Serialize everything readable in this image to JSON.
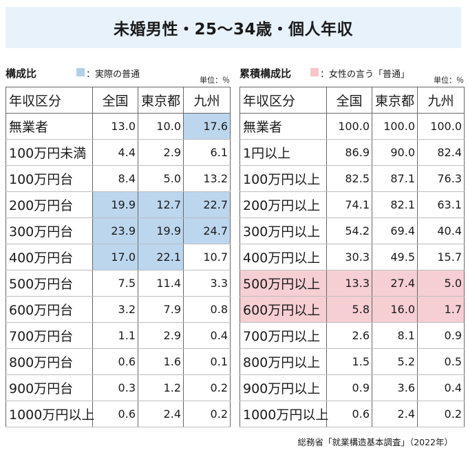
{
  "title": "未婚男性・25～34歳・個人年収",
  "left_panel": {
    "section_title": "構成比",
    "legend_label": "：実際の普通",
    "legend_color": "#b3cfe9",
    "unit": "単位：％",
    "headers": [
      "年収区分",
      "全国",
      "東京都",
      "九州"
    ]
  },
  "right_panel": {
    "section_title": "累積構成比",
    "legend_label": "：女性の言う「普通」",
    "legend_color": "#f6c6cb",
    "unit": "単位：％",
    "headers": [
      "年収区分",
      "全国",
      "東京都",
      "九州"
    ]
  },
  "source": "総務省「就業構造基本調査」（2022年）",
  "chart_data": [
    {
      "type": "table",
      "title": "構成比",
      "columns": [
        "年収区分",
        "全国",
        "東京都",
        "九州"
      ],
      "rows": [
        {
          "label": "無業者",
          "values": [
            "13.0",
            "10.0",
            "17.6"
          ],
          "highlight": [
            false,
            false,
            true
          ]
        },
        {
          "label": "100万円未満",
          "values": [
            "4.4",
            "2.9",
            "6.1"
          ],
          "highlight": [
            false,
            false,
            false
          ]
        },
        {
          "label": "100万円台",
          "values": [
            "8.4",
            "5.0",
            "13.2"
          ],
          "highlight": [
            false,
            false,
            false
          ]
        },
        {
          "label": "200万円台",
          "values": [
            "19.9",
            "12.7",
            "22.7"
          ],
          "highlight": [
            true,
            true,
            true
          ]
        },
        {
          "label": "300万円台",
          "values": [
            "23.9",
            "19.9",
            "24.7"
          ],
          "highlight": [
            true,
            true,
            true
          ]
        },
        {
          "label": "400万円台",
          "values": [
            "17.0",
            "22.1",
            "10.7"
          ],
          "highlight": [
            true,
            true,
            false
          ]
        },
        {
          "label": "500万円台",
          "values": [
            "7.5",
            "11.4",
            "3.3"
          ],
          "highlight": [
            false,
            false,
            false
          ]
        },
        {
          "label": "600万円台",
          "values": [
            "3.2",
            "7.9",
            "0.8"
          ],
          "highlight": [
            false,
            false,
            false
          ]
        },
        {
          "label": "700万円台",
          "values": [
            "1.1",
            "2.9",
            "0.4"
          ],
          "highlight": [
            false,
            false,
            false
          ]
        },
        {
          "label": "800万円台",
          "values": [
            "0.6",
            "1.6",
            "0.1"
          ],
          "highlight": [
            false,
            false,
            false
          ]
        },
        {
          "label": "900万円台",
          "values": [
            "0.3",
            "1.2",
            "0.2"
          ],
          "highlight": [
            false,
            false,
            false
          ]
        },
        {
          "label": "1000万円以上",
          "values": [
            "0.6",
            "2.4",
            "0.2"
          ],
          "highlight": [
            false,
            false,
            false
          ]
        }
      ]
    },
    {
      "type": "table",
      "title": "累積構成比",
      "columns": [
        "年収区分",
        "全国",
        "東京都",
        "九州"
      ],
      "rows": [
        {
          "label": "無業者",
          "values": [
            "100.0",
            "100.0",
            "100.0"
          ],
          "highlight": [
            false,
            false,
            false
          ]
        },
        {
          "label": "1円以上",
          "values": [
            "86.9",
            "90.0",
            "82.4"
          ],
          "highlight": [
            false,
            false,
            false
          ]
        },
        {
          "label": "100万円以上",
          "values": [
            "82.5",
            "87.1",
            "76.3"
          ],
          "highlight": [
            false,
            false,
            false
          ]
        },
        {
          "label": "200万円以上",
          "values": [
            "74.1",
            "82.1",
            "63.1"
          ],
          "highlight": [
            false,
            false,
            false
          ]
        },
        {
          "label": "300万円以上",
          "values": [
            "54.2",
            "69.4",
            "40.4"
          ],
          "highlight": [
            false,
            false,
            false
          ]
        },
        {
          "label": "400万円以上",
          "values": [
            "30.3",
            "49.5",
            "15.7"
          ],
          "highlight": [
            false,
            false,
            false
          ]
        },
        {
          "label": "500万円以上",
          "values": [
            "13.3",
            "27.4",
            "5.0"
          ],
          "highlight": [
            true,
            true,
            true
          ],
          "highlight_label": true
        },
        {
          "label": "600万円以上",
          "values": [
            "5.8",
            "16.0",
            "1.7"
          ],
          "highlight": [
            true,
            true,
            true
          ],
          "highlight_label": true
        },
        {
          "label": "700万円以上",
          "values": [
            "2.6",
            "8.1",
            "0.9"
          ],
          "highlight": [
            false,
            false,
            false
          ]
        },
        {
          "label": "800万円以上",
          "values": [
            "1.5",
            "5.2",
            "0.5"
          ],
          "highlight": [
            false,
            false,
            false
          ]
        },
        {
          "label": "900万円以上",
          "values": [
            "0.9",
            "3.6",
            "0.4"
          ],
          "highlight": [
            false,
            false,
            false
          ]
        },
        {
          "label": "1000万円以上",
          "values": [
            "0.6",
            "2.4",
            "0.2"
          ],
          "highlight": [
            false,
            false,
            false
          ]
        }
      ]
    }
  ]
}
